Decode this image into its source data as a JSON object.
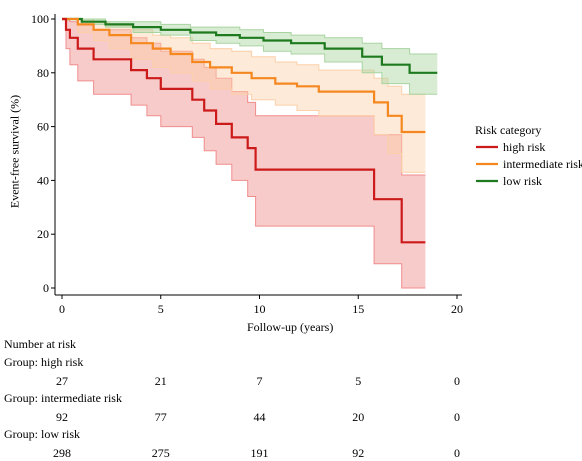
{
  "chart_data": {
    "type": "line",
    "xlabel": "Follow-up (years)",
    "ylabel": "Event-free survival (%)",
    "xlim": [
      0,
      20
    ],
    "ylim": [
      0,
      100
    ],
    "x_ticks": [
      0,
      5,
      10,
      15,
      20
    ],
    "y_ticks": [
      0,
      20,
      40,
      60,
      80,
      100
    ],
    "legend": {
      "title": "Risk category",
      "placement": "right"
    },
    "series": [
      {
        "name": "high risk",
        "color": "#cc1a1a",
        "band_color": "#f08c8c",
        "step_x": [
          0,
          0.2,
          0.4,
          0.8,
          1.6,
          3.5,
          4.3,
          5.0,
          6.6,
          7.2,
          7.8,
          8.6,
          9.4,
          9.8,
          12.5,
          15.8,
          16.7,
          17.2,
          18.4
        ],
        "estimate": [
          100,
          96,
          93,
          89,
          85,
          81,
          78,
          74,
          70,
          66,
          61,
          56,
          52,
          44,
          44,
          33,
          33,
          17,
          17
        ],
        "lower": [
          100,
          89,
          83,
          77,
          72,
          68,
          64,
          60,
          56,
          51,
          46,
          40,
          34,
          23,
          23,
          9,
          9,
          0,
          0
        ],
        "upper": [
          100,
          100,
          99,
          98,
          96,
          93,
          91,
          88,
          85,
          82,
          78,
          73,
          69,
          64,
          64,
          57,
          57,
          42,
          42
        ]
      },
      {
        "name": "intermediate risk",
        "color": "#f5871f",
        "band_color": "#fcd0a8",
        "step_x": [
          0,
          0.8,
          1.6,
          2.4,
          3.5,
          4.6,
          5.5,
          6.6,
          7.5,
          8.6,
          9.6,
          10.8,
          11.9,
          13.0,
          15.8,
          16.5,
          17.2,
          18.4
        ],
        "estimate": [
          100,
          98,
          96,
          94,
          91,
          89,
          87,
          84,
          82,
          80,
          78,
          76,
          75,
          73,
          69,
          64,
          58,
          58
        ],
        "lower": [
          100,
          95,
          92,
          89,
          85,
          82,
          80,
          77,
          74,
          72,
          70,
          68,
          66,
          64,
          57,
          50,
          43,
          43
        ],
        "upper": [
          100,
          100,
          99,
          98,
          96,
          94,
          93,
          91,
          89,
          88,
          86,
          84,
          83,
          81,
          78,
          75,
          72,
          72
        ]
      },
      {
        "name": "low risk",
        "color": "#1e7a1e",
        "band_color": "#a8d4a0",
        "step_x": [
          0,
          1.0,
          2.2,
          3.6,
          5.0,
          6.5,
          7.8,
          9.0,
          10.2,
          11.6,
          13.3,
          15.2,
          16.2,
          17.6,
          19.0
        ],
        "estimate": [
          100,
          99,
          98,
          97,
          96,
          95,
          94,
          93,
          92,
          91,
          89,
          86,
          83,
          80,
          80
        ],
        "lower": [
          100,
          98,
          97,
          95,
          94,
          92,
          91,
          90,
          88,
          87,
          84,
          80,
          76,
          72,
          72
        ],
        "upper": [
          100,
          100,
          99,
          99,
          98,
          97,
          97,
          96,
          95,
          94,
          93,
          91,
          89,
          87,
          87
        ]
      }
    ]
  },
  "risk_table": {
    "title": "Number at risk",
    "groups": [
      {
        "label": "Group: high risk",
        "values": [
          "27",
          "21",
          "7",
          "5",
          "0"
        ]
      },
      {
        "label": "Group: intermediate risk",
        "values": [
          "92",
          "77",
          "44",
          "20",
          "0"
        ]
      },
      {
        "label": "Group: low risk",
        "values": [
          "298",
          "275",
          "191",
          "92",
          "0"
        ]
      }
    ]
  }
}
